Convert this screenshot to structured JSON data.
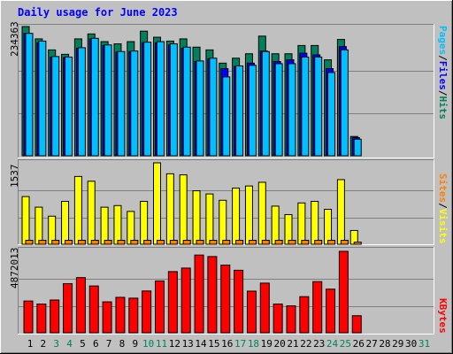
{
  "title": "Daily usage for June 2023",
  "colors": {
    "hits": "#00805c",
    "files": "#0000ff",
    "pages": "#00c0ff",
    "visits": "#ffff00",
    "sites": "#ff8000",
    "kbytes": "#ff0000",
    "weekday": "#000000",
    "weekend": "#00805c"
  },
  "chart_data": [
    {
      "type": "bar",
      "y_max_label": "234363",
      "ylim": [
        0,
        234363
      ],
      "right_labels": [
        "Pages",
        "Files",
        "Hits"
      ],
      "x": [
        1,
        2,
        3,
        4,
        5,
        6,
        7,
        8,
        9,
        10,
        11,
        12,
        13,
        14,
        15,
        16,
        17,
        18,
        19,
        20,
        21,
        22,
        23,
        24,
        25,
        26,
        27,
        28,
        29,
        30,
        31
      ],
      "weekend_days": [
        3,
        4,
        10,
        11,
        17,
        18,
        24,
        25,
        31
      ],
      "series": [
        {
          "name": "Hits",
          "values": [
            234363,
            212000,
            192000,
            184000,
            212000,
            221000,
            207000,
            203000,
            207000,
            226000,
            215000,
            208000,
            212000,
            197000,
            192000,
            168000,
            177000,
            185000,
            217000,
            185000,
            185000,
            200000,
            200000,
            174000,
            211000,
            35000,
            0,
            0,
            0,
            0,
            0
          ]
        },
        {
          "name": "Files",
          "values": [
            222000,
            205000,
            179000,
            178000,
            195000,
            212000,
            200000,
            188000,
            189000,
            205000,
            205000,
            201000,
            195000,
            171000,
            176000,
            158000,
            162000,
            168000,
            190000,
            171000,
            174000,
            186000,
            183000,
            158000,
            198000,
            33000,
            0,
            0,
            0,
            0,
            0
          ]
        },
        {
          "name": "Pages",
          "values": [
            222000,
            208000,
            180000,
            179000,
            196000,
            213000,
            201000,
            189000,
            190000,
            206000,
            207000,
            203000,
            197000,
            172000,
            177000,
            143000,
            163000,
            164000,
            189000,
            167000,
            167000,
            179000,
            179000,
            151000,
            192000,
            30000,
            0,
            0,
            0,
            0,
            0
          ]
        }
      ]
    },
    {
      "type": "bar",
      "y_max_label": "1537",
      "ylim": [
        0,
        1537
      ],
      "right_labels": [
        "Sites",
        "Visits"
      ],
      "x": [
        1,
        2,
        3,
        4,
        5,
        6,
        7,
        8,
        9,
        10,
        11,
        12,
        13,
        14,
        15,
        16,
        17,
        18,
        19,
        20,
        21,
        22,
        23,
        24,
        25,
        26,
        27,
        28,
        29,
        30,
        31
      ],
      "series": [
        {
          "name": "Visits",
          "values": [
            900,
            700,
            530,
            810,
            1280,
            1190,
            700,
            730,
            620,
            810,
            1537,
            1330,
            1310,
            1010,
            950,
            830,
            1060,
            1100,
            1170,
            720,
            560,
            780,
            810,
            660,
            1220,
            260,
            0,
            0,
            0,
            0,
            0
          ]
        },
        {
          "name": "Sites",
          "values": [
            75,
            75,
            75,
            75,
            75,
            75,
            75,
            75,
            75,
            75,
            75,
            75,
            75,
            75,
            75,
            75,
            75,
            75,
            75,
            75,
            75,
            75,
            75,
            75,
            75,
            40,
            0,
            0,
            0,
            0,
            0
          ]
        }
      ]
    },
    {
      "type": "bar",
      "y_max_label": "4872013",
      "ylim": [
        0,
        4872013
      ],
      "right_labels": [
        "KBytes"
      ],
      "x": [
        1,
        2,
        3,
        4,
        5,
        6,
        7,
        8,
        9,
        10,
        11,
        12,
        13,
        14,
        15,
        16,
        17,
        18,
        19,
        20,
        21,
        22,
        23,
        24,
        25,
        26,
        27,
        28,
        29,
        30,
        31
      ],
      "series": [
        {
          "name": "KBytes",
          "values": [
            1900000,
            1720000,
            1960000,
            2940000,
            3300000,
            2800000,
            1850000,
            2120000,
            2070000,
            2500000,
            3100000,
            3660000,
            3870000,
            4650000,
            4560000,
            4050000,
            3740000,
            2490000,
            2970000,
            1720000,
            1610000,
            2160000,
            3060000,
            2610000,
            4872013,
            1020000,
            0,
            0,
            0,
            0,
            0
          ]
        }
      ]
    }
  ]
}
